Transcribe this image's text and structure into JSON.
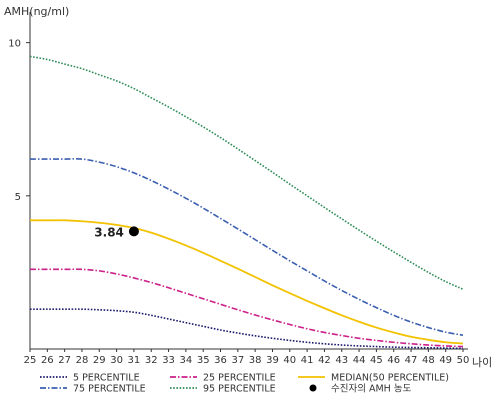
{
  "chart_data": {
    "type": "line",
    "ylabel": "AMH(ng/ml)",
    "xlabel": "나이",
    "x": [
      25,
      26,
      27,
      28,
      29,
      30,
      31,
      32,
      33,
      34,
      35,
      36,
      37,
      38,
      39,
      40,
      41,
      42,
      43,
      44,
      45,
      46,
      47,
      48,
      49,
      50
    ],
    "xlim": [
      25,
      50
    ],
    "ylim": [
      0,
      11
    ],
    "yticks": [
      5,
      10
    ],
    "grid": false,
    "legend_position": "bottom",
    "series": [
      {
        "name": "5 PERCENTILE",
        "color": "#1a1a6e",
        "dash": "dotted",
        "values": [
          1.3,
          1.3,
          1.3,
          1.3,
          1.28,
          1.25,
          1.2,
          1.1,
          0.98,
          0.86,
          0.74,
          0.62,
          0.52,
          0.43,
          0.35,
          0.28,
          0.22,
          0.17,
          0.13,
          0.1,
          0.08,
          0.06,
          0.05,
          0.04,
          0.03,
          0.02
        ]
      },
      {
        "name": "25 PERCENTILE",
        "color": "#cc1f8a",
        "dash": "dashdot",
        "values": [
          2.6,
          2.6,
          2.6,
          2.6,
          2.55,
          2.45,
          2.32,
          2.17,
          2.0,
          1.82,
          1.64,
          1.46,
          1.28,
          1.11,
          0.95,
          0.8,
          0.66,
          0.54,
          0.44,
          0.35,
          0.28,
          0.22,
          0.17,
          0.13,
          0.1,
          0.08
        ]
      },
      {
        "name": "MEDIAN(50 PERCENTILE)",
        "color": "#f2c200",
        "dash": "solid",
        "values": [
          4.2,
          4.2,
          4.2,
          4.17,
          4.12,
          4.05,
          3.95,
          3.8,
          3.6,
          3.38,
          3.14,
          2.88,
          2.62,
          2.35,
          2.08,
          1.82,
          1.57,
          1.33,
          1.1,
          0.89,
          0.7,
          0.54,
          0.4,
          0.3,
          0.22,
          0.18
        ]
      },
      {
        "name": "75 PERCENTILE",
        "color": "#3b5fb0",
        "dash": "dashdot",
        "values": [
          6.2,
          6.2,
          6.2,
          6.2,
          6.1,
          5.95,
          5.75,
          5.5,
          5.22,
          4.92,
          4.6,
          4.26,
          3.92,
          3.57,
          3.22,
          2.88,
          2.55,
          2.22,
          1.91,
          1.62,
          1.35,
          1.1,
          0.88,
          0.7,
          0.55,
          0.45
        ]
      },
      {
        "name": "95 PERCENTILE",
        "color": "#2e8b57",
        "dash": "dotted",
        "values": [
          9.55,
          9.45,
          9.3,
          9.15,
          8.95,
          8.75,
          8.5,
          8.2,
          7.9,
          7.58,
          7.25,
          6.9,
          6.53,
          6.15,
          5.77,
          5.38,
          5.0,
          4.62,
          4.25,
          3.88,
          3.52,
          3.17,
          2.83,
          2.5,
          2.2,
          1.95
        ]
      }
    ],
    "marker": {
      "x": 31,
      "y": 3.84,
      "label": "3.84",
      "legend": "수진자의 AMH 농도",
      "color": "#000000"
    }
  }
}
